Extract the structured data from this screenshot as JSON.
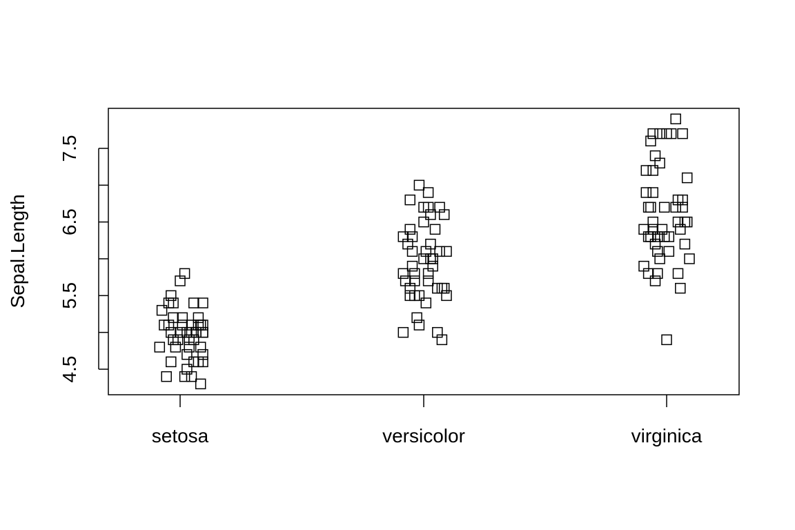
{
  "chart_data": {
    "type": "scatter",
    "title": "",
    "xlabel": "",
    "ylabel": "Sepal.Length",
    "categories": [
      "setosa",
      "versicolor",
      "virginica"
    ],
    "ylim": [
      4.2,
      8.0
    ],
    "yticks": [
      4.5,
      5.0,
      5.5,
      6.0,
      6.5,
      7.0,
      7.5
    ],
    "ytick_labels": [
      "4.5",
      "",
      "5.5",
      "",
      "6.5",
      "",
      "7.5"
    ],
    "marker": "open-square",
    "grid": false,
    "series": [
      {
        "category": "setosa",
        "points": [
          {
            "jitter": -0.09,
            "y": 4.8
          },
          {
            "jitter": -0.06,
            "y": 4.4
          },
          {
            "jitter": -0.08,
            "y": 5.3
          },
          {
            "jitter": -0.07,
            "y": 5.1
          },
          {
            "jitter": -0.05,
            "y": 5.4
          },
          {
            "jitter": -0.04,
            "y": 5.5
          },
          {
            "jitter": -0.05,
            "y": 5.1
          },
          {
            "jitter": -0.04,
            "y": 4.6
          },
          {
            "jitter": -0.04,
            "y": 5.0
          },
          {
            "jitter": -0.03,
            "y": 4.9
          },
          {
            "jitter": -0.03,
            "y": 5.4
          },
          {
            "jitter": -0.03,
            "y": 5.2
          },
          {
            "jitter": -0.02,
            "y": 4.8
          },
          {
            "jitter": -0.01,
            "y": 4.9
          },
          {
            "jitter": 0.0,
            "y": 5.0
          },
          {
            "jitter": 0.0,
            "y": 5.7
          },
          {
            "jitter": 0.01,
            "y": 5.2
          },
          {
            "jitter": 0.01,
            "y": 5.1
          },
          {
            "jitter": 0.02,
            "y": 4.4
          },
          {
            "jitter": 0.02,
            "y": 5.8
          },
          {
            "jitter": 0.03,
            "y": 4.5
          },
          {
            "jitter": 0.03,
            "y": 5.0
          },
          {
            "jitter": 0.03,
            "y": 4.7
          },
          {
            "jitter": 0.04,
            "y": 4.9
          },
          {
            "jitter": 0.04,
            "y": 4.8
          },
          {
            "jitter": 0.05,
            "y": 4.4
          },
          {
            "jitter": 0.05,
            "y": 5.0
          },
          {
            "jitter": 0.05,
            "y": 5.1
          },
          {
            "jitter": 0.06,
            "y": 4.6
          },
          {
            "jitter": 0.06,
            "y": 4.9
          },
          {
            "jitter": 0.06,
            "y": 5.4
          },
          {
            "jitter": 0.07,
            "y": 5.0
          },
          {
            "jitter": 0.07,
            "y": 5.0
          },
          {
            "jitter": 0.08,
            "y": 5.1
          },
          {
            "jitter": 0.08,
            "y": 5.2
          },
          {
            "jitter": 0.08,
            "y": 4.6
          },
          {
            "jitter": 0.09,
            "y": 4.3
          },
          {
            "jitter": 0.09,
            "y": 4.8
          },
          {
            "jitter": 0.09,
            "y": 5.1
          },
          {
            "jitter": 0.1,
            "y": 5.0
          },
          {
            "jitter": 0.1,
            "y": 4.7
          },
          {
            "jitter": 0.1,
            "y": 5.1
          },
          {
            "jitter": 0.1,
            "y": 4.6
          },
          {
            "jitter": 0.1,
            "y": 5.4
          },
          {
            "jitter": 0.1,
            "y": 5.0
          }
        ]
      },
      {
        "category": "versicolor",
        "points": [
          {
            "jitter": -0.09,
            "y": 5.0
          },
          {
            "jitter": -0.09,
            "y": 5.8
          },
          {
            "jitter": -0.09,
            "y": 6.3
          },
          {
            "jitter": -0.08,
            "y": 5.7
          },
          {
            "jitter": -0.07,
            "y": 6.2
          },
          {
            "jitter": -0.06,
            "y": 5.5
          },
          {
            "jitter": -0.06,
            "y": 6.4
          },
          {
            "jitter": -0.06,
            "y": 5.6
          },
          {
            "jitter": -0.06,
            "y": 6.8
          },
          {
            "jitter": -0.05,
            "y": 6.1
          },
          {
            "jitter": -0.05,
            "y": 5.9
          },
          {
            "jitter": -0.05,
            "y": 6.3
          },
          {
            "jitter": -0.04,
            "y": 5.5
          },
          {
            "jitter": -0.04,
            "y": 5.7
          },
          {
            "jitter": -0.04,
            "y": 5.8
          },
          {
            "jitter": -0.03,
            "y": 5.2
          },
          {
            "jitter": -0.02,
            "y": 7.0
          },
          {
            "jitter": -0.02,
            "y": 5.5
          },
          {
            "jitter": -0.02,
            "y": 5.1
          },
          {
            "jitter": 0.0,
            "y": 6.7
          },
          {
            "jitter": 0.0,
            "y": 6.5
          },
          {
            "jitter": 0.0,
            "y": 6.0
          },
          {
            "jitter": 0.01,
            "y": 5.4
          },
          {
            "jitter": 0.01,
            "y": 6.1
          },
          {
            "jitter": 0.02,
            "y": 6.7
          },
          {
            "jitter": 0.02,
            "y": 5.8
          },
          {
            "jitter": 0.02,
            "y": 6.9
          },
          {
            "jitter": 0.02,
            "y": 5.7
          },
          {
            "jitter": 0.03,
            "y": 6.6
          },
          {
            "jitter": 0.03,
            "y": 6.0
          },
          {
            "jitter": 0.03,
            "y": 6.2
          },
          {
            "jitter": 0.04,
            "y": 5.9
          },
          {
            "jitter": 0.04,
            "y": 6.0
          },
          {
            "jitter": 0.05,
            "y": 6.4
          },
          {
            "jitter": 0.06,
            "y": 5.6
          },
          {
            "jitter": 0.06,
            "y": 5.0
          },
          {
            "jitter": 0.07,
            "y": 6.7
          },
          {
            "jitter": 0.07,
            "y": 6.1
          },
          {
            "jitter": 0.08,
            "y": 5.6
          },
          {
            "jitter": 0.08,
            "y": 4.9
          },
          {
            "jitter": 0.09,
            "y": 6.6
          },
          {
            "jitter": 0.09,
            "y": 5.6
          },
          {
            "jitter": 0.1,
            "y": 6.1
          },
          {
            "jitter": 0.1,
            "y": 5.5
          }
        ]
      },
      {
        "category": "virginica",
        "points": [
          {
            "jitter": -0.1,
            "y": 6.4
          },
          {
            "jitter": -0.1,
            "y": 5.9
          },
          {
            "jitter": -0.09,
            "y": 7.2
          },
          {
            "jitter": -0.09,
            "y": 6.9
          },
          {
            "jitter": -0.08,
            "y": 6.3
          },
          {
            "jitter": -0.08,
            "y": 5.8
          },
          {
            "jitter": -0.08,
            "y": 6.7
          },
          {
            "jitter": -0.07,
            "y": 7.6
          },
          {
            "jitter": -0.07,
            "y": 6.7
          },
          {
            "jitter": -0.07,
            "y": 6.3
          },
          {
            "jitter": -0.06,
            "y": 6.5
          },
          {
            "jitter": -0.06,
            "y": 6.9
          },
          {
            "jitter": -0.06,
            "y": 7.7
          },
          {
            "jitter": -0.06,
            "y": 7.2
          },
          {
            "jitter": -0.06,
            "y": 6.4
          },
          {
            "jitter": -0.05,
            "y": 7.4
          },
          {
            "jitter": -0.05,
            "y": 5.7
          },
          {
            "jitter": -0.05,
            "y": 6.2
          },
          {
            "jitter": -0.04,
            "y": 6.3
          },
          {
            "jitter": -0.04,
            "y": 6.1
          },
          {
            "jitter": -0.04,
            "y": 5.8
          },
          {
            "jitter": -0.03,
            "y": 7.7
          },
          {
            "jitter": -0.03,
            "y": 7.3
          },
          {
            "jitter": -0.03,
            "y": 6.0
          },
          {
            "jitter": -0.02,
            "y": 6.4
          },
          {
            "jitter": -0.01,
            "y": 6.7
          },
          {
            "jitter": -0.01,
            "y": 6.3
          },
          {
            "jitter": 0.0,
            "y": 4.9
          },
          {
            "jitter": 0.0,
            "y": 7.7
          },
          {
            "jitter": 0.01,
            "y": 6.1
          },
          {
            "jitter": 0.01,
            "y": 6.3
          },
          {
            "jitter": 0.02,
            "y": 7.7
          },
          {
            "jitter": 0.04,
            "y": 7.9
          },
          {
            "jitter": 0.04,
            "y": 6.7
          },
          {
            "jitter": 0.05,
            "y": 6.5
          },
          {
            "jitter": 0.05,
            "y": 5.8
          },
          {
            "jitter": 0.05,
            "y": 6.8
          },
          {
            "jitter": 0.06,
            "y": 6.4
          },
          {
            "jitter": 0.06,
            "y": 5.6
          },
          {
            "jitter": 0.07,
            "y": 6.8
          },
          {
            "jitter": 0.07,
            "y": 6.7
          },
          {
            "jitter": 0.07,
            "y": 7.7
          },
          {
            "jitter": 0.08,
            "y": 6.2
          },
          {
            "jitter": 0.08,
            "y": 6.5
          },
          {
            "jitter": 0.09,
            "y": 7.1
          },
          {
            "jitter": 0.09,
            "y": 6.5
          },
          {
            "jitter": 0.1,
            "y": 6.0
          }
        ]
      }
    ]
  }
}
